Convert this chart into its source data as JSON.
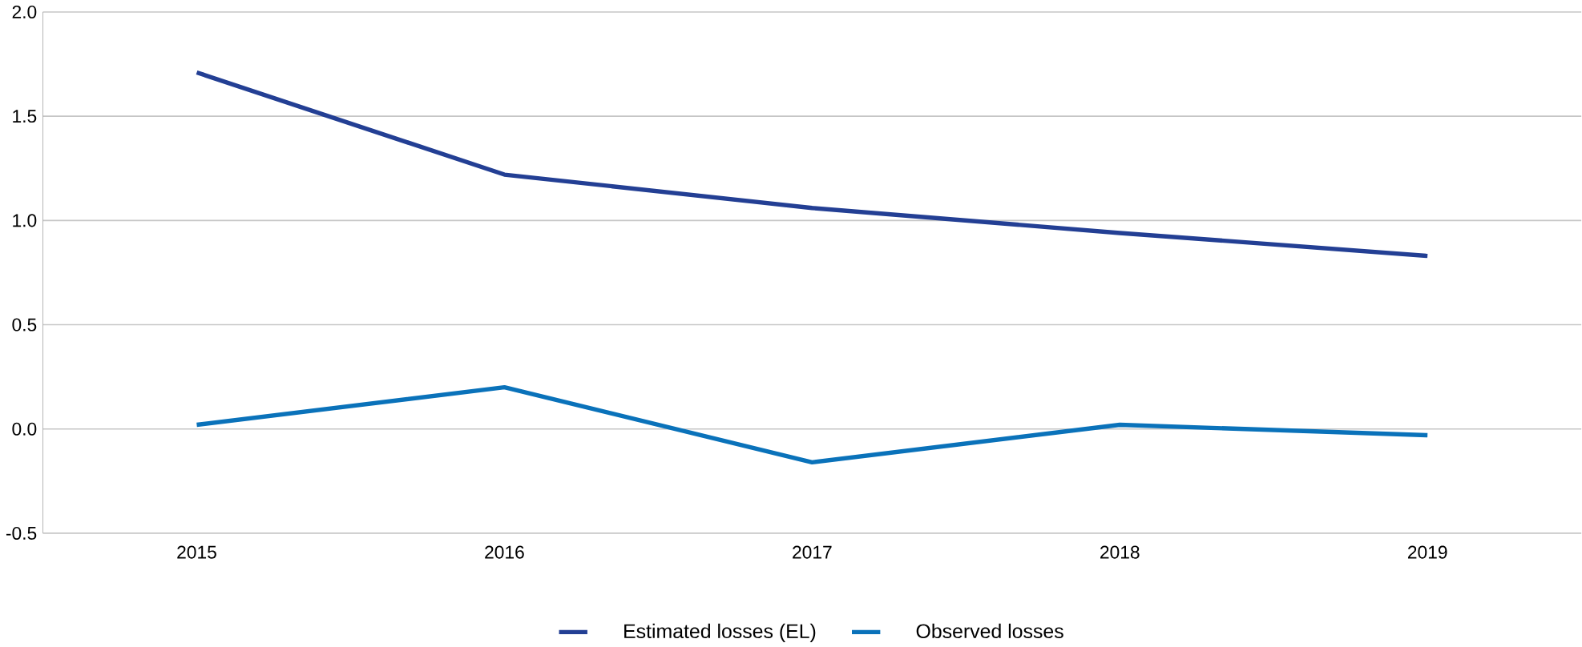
{
  "chart_data": {
    "type": "line",
    "categories": [
      "2015",
      "2016",
      "2017",
      "2018",
      "2019"
    ],
    "series": [
      {
        "name": "Estimated losses (EL)",
        "color": "#233f94",
        "values": [
          1.71,
          1.22,
          1.06,
          0.94,
          0.83
        ]
      },
      {
        "name": "Observed losses",
        "color": "#0a72ba",
        "values": [
          0.02,
          0.2,
          -0.16,
          0.02,
          -0.03
        ]
      }
    ],
    "ylim": [
      -0.5,
      2.0
    ],
    "yticks": [
      -0.5,
      {
        "value": 0,
        "label": "0.0"
      },
      0.5,
      {
        "value": 1,
        "label": "1.0"
      },
      {
        "value": 1.5,
        "label": "1.5"
      },
      {
        "value": 2,
        "label": "2.0"
      }
    ],
    "grid": "y",
    "legend": "bottom",
    "marker": "none",
    "line_style": "solid"
  }
}
